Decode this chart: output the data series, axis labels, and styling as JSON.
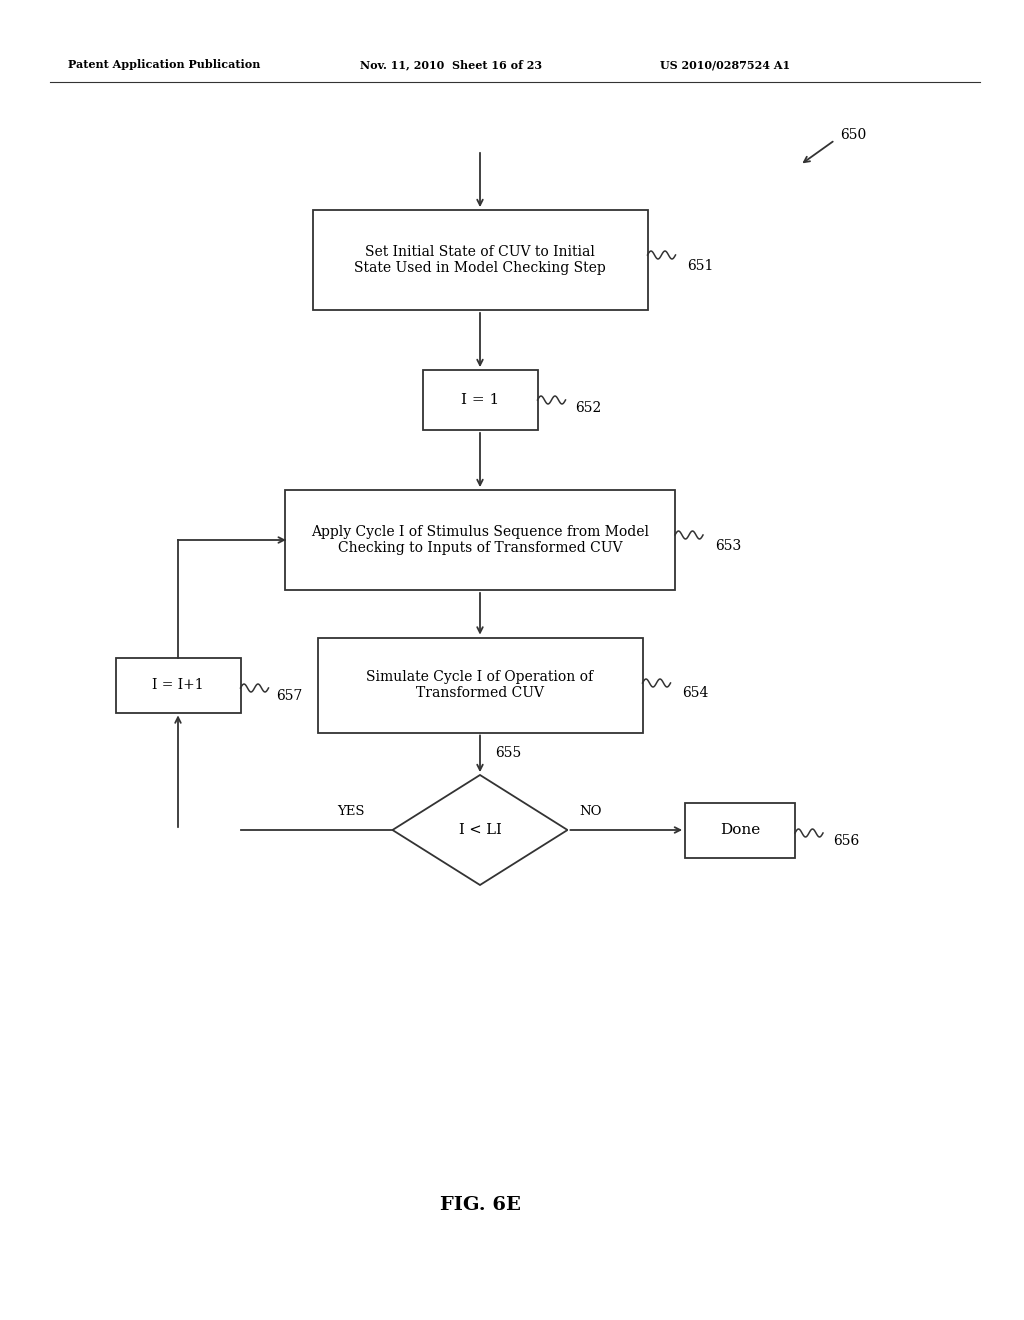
{
  "bg_color": "#ffffff",
  "header_left": "Patent Application Publication",
  "header_mid": "Nov. 11, 2010  Sheet 16 of 23",
  "header_right": "US 2010/0287524 A1",
  "figure_label": "FIG. 6E",
  "ref_650": "650",
  "ref_651": "651",
  "ref_652": "652",
  "ref_653": "653",
  "ref_654": "654",
  "ref_655": "655",
  "ref_656": "656",
  "ref_657": "657",
  "box651_text": "Set Initial State of CUV to Initial\nState Used in Model Checking Step",
  "box652_text": "I = 1",
  "box653_text": "Apply Cycle I of Stimulus Sequence from Model\nChecking to Inputs of Transformed CUV",
  "box654_text": "Simulate Cycle I of Operation of\nTransformed CUV",
  "diamond655_text": "I < LI",
  "box656_text": "Done",
  "box657_text": "I = I+1",
  "yes_label": "YES",
  "no_label": "NO"
}
